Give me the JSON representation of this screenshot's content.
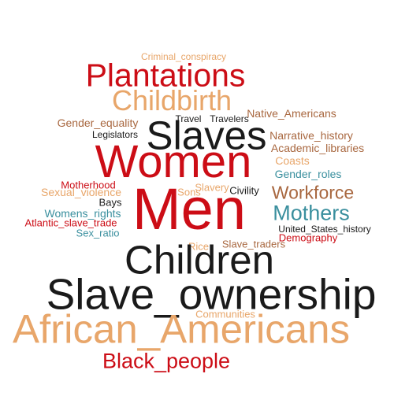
{
  "colors": {
    "red": "#cc0d16",
    "black": "#1a1a1a",
    "peach": "#e8a66a",
    "brown": "#a8673f",
    "teal": "#3a8f9e"
  },
  "words": [
    {
      "text": "Criminal_conspiracy",
      "color": "peach"
    },
    {
      "text": "Plantations",
      "color": "red"
    },
    {
      "text": "Childbirth",
      "color": "peach"
    },
    {
      "text": "Native_Americans",
      "color": "brown"
    },
    {
      "text": "Travel",
      "color": "black"
    },
    {
      "text": "Travelers",
      "color": "black"
    },
    {
      "text": "Gender_equality",
      "color": "brown"
    },
    {
      "text": "Slaves",
      "color": "black"
    },
    {
      "text": "Legislators",
      "color": "black"
    },
    {
      "text": "Narrative_history",
      "color": "brown"
    },
    {
      "text": "Academic_libraries",
      "color": "brown"
    },
    {
      "text": "Women",
      "color": "red"
    },
    {
      "text": "Coasts",
      "color": "peach"
    },
    {
      "text": "Gender_roles",
      "color": "teal"
    },
    {
      "text": "Motherhood",
      "color": "red"
    },
    {
      "text": "Slavery",
      "color": "peach"
    },
    {
      "text": "Sexual_violence",
      "color": "peach"
    },
    {
      "text": "Sons",
      "color": "peach"
    },
    {
      "text": "Civility",
      "color": "black"
    },
    {
      "text": "Workforce",
      "color": "brown"
    },
    {
      "text": "Bays",
      "color": "black"
    },
    {
      "text": "Men",
      "color": "red"
    },
    {
      "text": "Mothers",
      "color": "teal"
    },
    {
      "text": "Womens_rights",
      "color": "teal"
    },
    {
      "text": "Atlantic_slave_trade",
      "color": "red"
    },
    {
      "text": "United_States_history",
      "color": "black"
    },
    {
      "text": "Sex_ratio",
      "color": "teal"
    },
    {
      "text": "Demography",
      "color": "red"
    },
    {
      "text": "Slave_traders",
      "color": "brown"
    },
    {
      "text": "Rice",
      "color": "peach"
    },
    {
      "text": "Children",
      "color": "black"
    },
    {
      "text": "Slave_ownership",
      "color": "black"
    },
    {
      "text": "Communities",
      "color": "peach"
    },
    {
      "text": "African_Americans",
      "color": "peach"
    },
    {
      "text": "Black_people",
      "color": "red"
    }
  ]
}
